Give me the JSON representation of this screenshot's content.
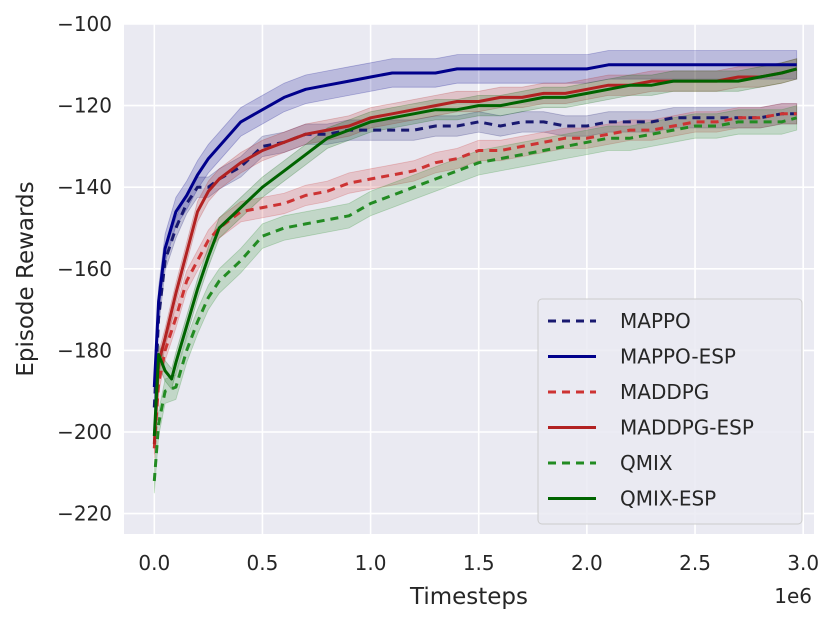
{
  "chart_data": {
    "type": "line",
    "title": "",
    "xlabel": "Timesteps",
    "ylabel": "Episode Rewards",
    "x_offset_label": "1e6",
    "xlim": [
      -0.14,
      3.05
    ],
    "ylim": [
      -225,
      -100
    ],
    "x_ticks": [
      0.0,
      0.5,
      1.0,
      1.5,
      2.0,
      2.5,
      3.0
    ],
    "x_tick_labels": [
      "0.0",
      "0.5",
      "1.0",
      "1.5",
      "2.0",
      "2.5",
      "3.0"
    ],
    "y_ticks": [
      -220,
      -200,
      -180,
      -160,
      -140,
      -120,
      -100
    ],
    "y_tick_labels": [
      "−220",
      "−200",
      "−180",
      "−160",
      "−140",
      "−120",
      "−100"
    ],
    "grid": true,
    "legend_position": "bottom-right",
    "series": [
      {
        "name": "MAPPO",
        "color": "#191970",
        "dash": true,
        "x": [
          0.0,
          0.02,
          0.05,
          0.1,
          0.15,
          0.2,
          0.25,
          0.3,
          0.4,
          0.5,
          0.6,
          0.7,
          0.8,
          0.9,
          1.0,
          1.1,
          1.2,
          1.3,
          1.4,
          1.5,
          1.6,
          1.7,
          1.8,
          1.9,
          2.0,
          2.1,
          2.2,
          2.3,
          2.4,
          2.5,
          2.6,
          2.7,
          2.8,
          2.9,
          2.97
        ],
        "y": [
          -194,
          -172,
          -158,
          -150,
          -144,
          -140,
          -140,
          -138,
          -135,
          -130,
          -129,
          -127,
          -127,
          -126,
          -126,
          -126,
          -126,
          -125,
          -125,
          -124,
          -125,
          -124,
          -124,
          -125,
          -125,
          -124,
          -124,
          -124,
          -123,
          -123,
          -123,
          -123,
          -123,
          -122,
          -122
        ],
        "band": 2.5
      },
      {
        "name": "MAPPO-ESP",
        "color": "#00008b",
        "dash": false,
        "x": [
          0.0,
          0.02,
          0.05,
          0.1,
          0.15,
          0.2,
          0.25,
          0.3,
          0.4,
          0.5,
          0.6,
          0.7,
          0.8,
          0.9,
          1.0,
          1.1,
          1.2,
          1.3,
          1.4,
          1.5,
          1.6,
          1.7,
          1.8,
          1.9,
          2.0,
          2.1,
          2.2,
          2.3,
          2.4,
          2.5,
          2.6,
          2.7,
          2.8,
          2.9,
          2.97
        ],
        "y": [
          -189,
          -168,
          -155,
          -146,
          -142,
          -137,
          -133,
          -130,
          -124,
          -121,
          -118,
          -116,
          -115,
          -114,
          -113,
          -112,
          -112,
          -112,
          -111,
          -111,
          -111,
          -111,
          -111,
          -111,
          -111,
          -110,
          -110,
          -110,
          -110,
          -110,
          -110,
          -110,
          -110,
          -110,
          -110
        ],
        "band": 3.5
      },
      {
        "name": "MADDPG",
        "color": "#cd3333",
        "dash": true,
        "x": [
          0.0,
          0.02,
          0.05,
          0.1,
          0.15,
          0.2,
          0.25,
          0.3,
          0.4,
          0.5,
          0.6,
          0.7,
          0.8,
          0.9,
          1.0,
          1.1,
          1.2,
          1.3,
          1.4,
          1.5,
          1.6,
          1.7,
          1.8,
          1.9,
          2.0,
          2.1,
          2.2,
          2.3,
          2.4,
          2.5,
          2.6,
          2.7,
          2.8,
          2.9,
          2.97
        ],
        "y": [
          -204,
          -188,
          -180,
          -172,
          -163,
          -158,
          -153,
          -150,
          -146,
          -145,
          -144,
          -142,
          -141,
          -139,
          -138,
          -137,
          -136,
          -134,
          -133,
          -131,
          -131,
          -130,
          -129,
          -128,
          -128,
          -127,
          -126,
          -126,
          -125,
          -124,
          -124,
          -123,
          -123,
          -122,
          -122
        ],
        "band": 2.5
      },
      {
        "name": "MADDPG-ESP",
        "color": "#b22222",
        "dash": false,
        "x": [
          0.0,
          0.02,
          0.05,
          0.1,
          0.15,
          0.2,
          0.25,
          0.3,
          0.4,
          0.5,
          0.6,
          0.7,
          0.8,
          0.9,
          1.0,
          1.1,
          1.2,
          1.3,
          1.4,
          1.5,
          1.6,
          1.7,
          1.8,
          1.9,
          2.0,
          2.1,
          2.2,
          2.3,
          2.4,
          2.5,
          2.6,
          2.7,
          2.8,
          2.9,
          2.97
        ],
        "y": [
          -203,
          -183,
          -177,
          -166,
          -156,
          -146,
          -141,
          -138,
          -134,
          -131,
          -129,
          -127,
          -126,
          -125,
          -123,
          -122,
          -121,
          -120,
          -119,
          -119,
          -118,
          -118,
          -117,
          -117,
          -116,
          -115,
          -115,
          -114,
          -114,
          -114,
          -114,
          -113,
          -113,
          -112,
          -111
        ],
        "band": 2.5
      },
      {
        "name": "QMIX",
        "color": "#228b22",
        "dash": true,
        "x": [
          0.0,
          0.02,
          0.05,
          0.1,
          0.15,
          0.2,
          0.25,
          0.3,
          0.4,
          0.5,
          0.6,
          0.7,
          0.8,
          0.9,
          1.0,
          1.1,
          1.2,
          1.3,
          1.4,
          1.5,
          1.6,
          1.7,
          1.8,
          1.9,
          2.0,
          2.1,
          2.2,
          2.3,
          2.4,
          2.5,
          2.6,
          2.7,
          2.8,
          2.9,
          2.97
        ],
        "y": [
          -212,
          -198,
          -190,
          -189,
          -180,
          -173,
          -167,
          -163,
          -158,
          -152,
          -150,
          -149,
          -148,
          -147,
          -144,
          -142,
          -140,
          -138,
          -136,
          -134,
          -133,
          -132,
          -131,
          -130,
          -129,
          -128,
          -128,
          -127,
          -126,
          -125,
          -125,
          -124,
          -124,
          -124,
          -123
        ],
        "band": 3
      },
      {
        "name": "QMIX-ESP",
        "color": "#006400",
        "dash": false,
        "x": [
          0.0,
          0.02,
          0.05,
          0.08,
          0.1,
          0.15,
          0.2,
          0.25,
          0.3,
          0.4,
          0.5,
          0.6,
          0.7,
          0.8,
          0.9,
          1.0,
          1.1,
          1.2,
          1.3,
          1.4,
          1.5,
          1.6,
          1.7,
          1.8,
          1.9,
          2.0,
          2.1,
          2.2,
          2.3,
          2.4,
          2.5,
          2.6,
          2.7,
          2.8,
          2.9,
          2.97
        ],
        "y": [
          -201,
          -181,
          -185,
          -187,
          -183,
          -174,
          -165,
          -157,
          -150,
          -145,
          -140,
          -136,
          -132,
          -128,
          -126,
          -124,
          -123,
          -122,
          -121,
          -121,
          -120,
          -120,
          -119,
          -118,
          -118,
          -117,
          -116,
          -115,
          -115,
          -114,
          -114,
          -114,
          -114,
          -113,
          -112,
          -111
        ],
        "band": 2.5
      }
    ]
  }
}
